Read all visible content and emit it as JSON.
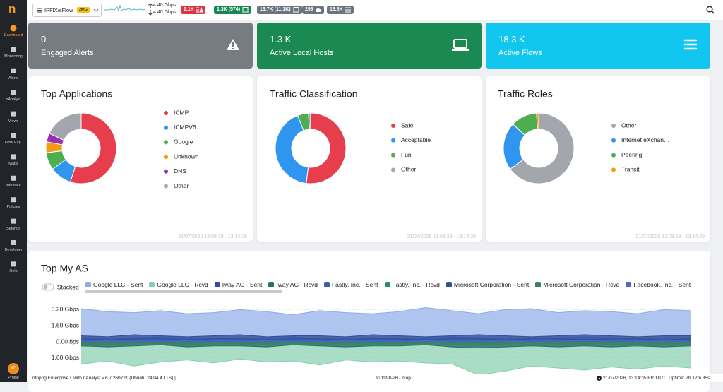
{
  "sidebar": {
    "logo": "n",
    "items": [
      "Dashboard",
      "Monitoring",
      "Alerts",
      "nAnalyst",
      "Views",
      "Flow Exp.",
      "Maps",
      "Interface",
      "Policies",
      "Settings",
      "Developer",
      "Help"
    ],
    "profile": {
      "initials": "AD",
      "label": "Profile"
    }
  },
  "topbar": {
    "interface": "IPFIX/sFlow",
    "interface_badge": "2MG",
    "upload": "4.40 Gbps",
    "download": "4.40 Gbps",
    "badges": [
      "2.1K",
      "1.3K (574)",
      "13.7K (11.1K)",
      "299",
      "18.8K"
    ]
  },
  "cards": [
    {
      "value": "0",
      "label": "Engaged Alerts"
    },
    {
      "value": "1.3 K",
      "label": "Active Local Hosts"
    },
    {
      "value": "18.3 K",
      "label": "Active Flows"
    }
  ],
  "chart_data": [
    {
      "type": "pie",
      "title": "Top Applications",
      "categories": [
        "ICMP",
        "ICMPV6",
        "Google",
        "Unknown",
        "DNS",
        "Other"
      ],
      "values": [
        55,
        10,
        8,
        5,
        4,
        18
      ],
      "colors": [
        "#e63e4d",
        "#2f95ee",
        "#4cae4f",
        "#f59a12",
        "#9c2fb0",
        "#a3a7ad"
      ],
      "timestamp": "21/07/2026 13:09:29 - 13:14:29"
    },
    {
      "type": "pie",
      "title": "Traffic Classification",
      "categories": [
        "Safe",
        "Acceptable",
        "Fun",
        "Other"
      ],
      "values": [
        52,
        42,
        5,
        1
      ],
      "colors": [
        "#e63e4d",
        "#2f95ee",
        "#4cae4f",
        "#a3a7ad"
      ],
      "timestamp": "21/07/2026 13:09:29 - 13:14:29"
    },
    {
      "type": "pie",
      "title": "Traffic Roles",
      "categories": [
        "Other",
        "Internet eXchan…",
        "Peering",
        "Transit"
      ],
      "values": [
        65,
        22,
        12,
        1
      ],
      "colors": [
        "#a3a7ad",
        "#2f95ee",
        "#4cae4f",
        "#f59a12"
      ],
      "timestamp": "21/07/2026 13:09:29 - 13:14:29"
    },
    {
      "type": "area",
      "title": "Top My AS",
      "stacked_label": "Stacked",
      "stacked": false,
      "grid": true,
      "ylim": [
        -4,
        4
      ],
      "yticks": [
        {
          "value": 3.2,
          "label": "3.20 Gbps"
        },
        {
          "value": 1.6,
          "label": "1.60 Gbps"
        },
        {
          "value": 0,
          "label": "0.00 bps"
        },
        {
          "value": -1.6,
          "label": "1.60 Gbps"
        }
      ],
      "series": [
        {
          "name": "Google LLC - Sent",
          "color": "#8fabea",
          "values": [
            3.3,
            3.0,
            2.9,
            3.1,
            2.8,
            2.9,
            3.2,
            3.0,
            2.7,
            3.1,
            2.9,
            2.8,
            3.0,
            3.4,
            3.1,
            2.8,
            3.2,
            3.3,
            2.9,
            3.1,
            3.0,
            2.8,
            3.2,
            3.1
          ]
        },
        {
          "name": "Google LLC - Rcvd",
          "color": "#84cfac",
          "values": [
            -2.2,
            -1.9,
            -2.4,
            -2.0,
            -1.8,
            -2.1,
            -1.7,
            -2.0,
            -1.9,
            -2.3,
            -1.8,
            -2.0,
            -1.9,
            -2.1,
            -2.2,
            -3.3,
            -2.9,
            -2.4,
            -2.6,
            -2.8,
            -2.5,
            -2.7,
            -2.4,
            -2.6
          ]
        },
        {
          "name": "Iway AG - Sent",
          "color": "#2e4f9a",
          "values": [
            0.6,
            0.5,
            0.7,
            0.6,
            0.5,
            0.6,
            0.7,
            0.5,
            0.6,
            0.6,
            0.5,
            0.7,
            0.6,
            0.5,
            0.6,
            0.7,
            0.6,
            0.5,
            0.6,
            0.7,
            0.6,
            0.5,
            0.6,
            0.6
          ]
        },
        {
          "name": "Iway AG - Rcvd",
          "color": "#2b6e6a",
          "values": [
            -0.4,
            -0.5,
            -0.4,
            -0.3,
            -0.5,
            -0.4,
            -0.4,
            -0.5,
            -0.3,
            -0.4,
            -0.5,
            -0.4,
            -0.4,
            -0.3,
            -0.5,
            -0.6,
            -0.5,
            -0.4,
            -0.5,
            -0.4,
            -0.5,
            -0.4,
            -0.5,
            -0.4
          ]
        },
        {
          "name": "Fastly, Inc. - Sent",
          "color": "#3a5fb0",
          "values": [
            0.4,
            0.3,
            0.4,
            0.5,
            0.4,
            0.3,
            0.4,
            0.4,
            0.5,
            0.3,
            0.4,
            0.4,
            0.3,
            0.4,
            0.5,
            0.4,
            0.3,
            0.4,
            0.4,
            0.5,
            0.4,
            0.3,
            0.4,
            0.4
          ]
        },
        {
          "name": "Fastly, Inc. - Rcvd",
          "color": "#2f8a72",
          "values": [
            -0.3,
            -0.3,
            -0.2,
            -0.3,
            -0.4,
            -0.3,
            -0.2,
            -0.3,
            -0.3,
            -0.2,
            -0.3,
            -0.4,
            -0.3,
            -0.3,
            -0.2,
            -0.4,
            -0.3,
            -0.3,
            -0.2,
            -0.3,
            -0.3,
            -0.4,
            -0.3,
            -0.3
          ]
        },
        {
          "name": "Microsoft Corporation - Sent",
          "color": "#34508f",
          "values": [
            0.3,
            0.2,
            0.3,
            0.3,
            0.2,
            0.3,
            0.3,
            0.2,
            0.3,
            0.3,
            0.2,
            0.3,
            0.3,
            0.2,
            0.3,
            0.3,
            0.2,
            0.3,
            0.3,
            0.2,
            0.3,
            0.3,
            0.2,
            0.3
          ]
        },
        {
          "name": "Microsoft Corporation - Rcvd",
          "color": "#3f7f66",
          "values": [
            -0.2,
            -0.2,
            -0.1,
            -0.2,
            -0.2,
            -0.1,
            -0.2,
            -0.2,
            -0.1,
            -0.2,
            -0.2,
            -0.1,
            -0.2,
            -0.2,
            -0.1,
            -0.2,
            -0.2,
            -0.1,
            -0.2,
            -0.2,
            -0.1,
            -0.2,
            -0.2,
            -0.1
          ]
        },
        {
          "name": "Facebook, Inc. - Sent",
          "color": "#4a6cc0",
          "values": [
            0.2,
            0.1,
            0.2,
            0.2,
            0.1,
            0.2,
            0.2,
            0.1,
            0.2,
            0.2,
            0.1,
            0.2,
            0.2,
            0.1,
            0.2,
            0.2,
            0.1,
            0.2,
            0.2,
            0.1,
            0.2,
            0.2,
            0.1,
            0.2
          ]
        }
      ]
    }
  ],
  "footer": {
    "left": "ntopng Enterprise L with nAnalyst v.6.7.260721 (Ubuntu 24.04.4 LTS) |",
    "center": "© 1998-26 - ntop",
    "right": "21/07/2026, 13:14:35 Etc/UTC | Uptime: 7h 12m 35s"
  }
}
